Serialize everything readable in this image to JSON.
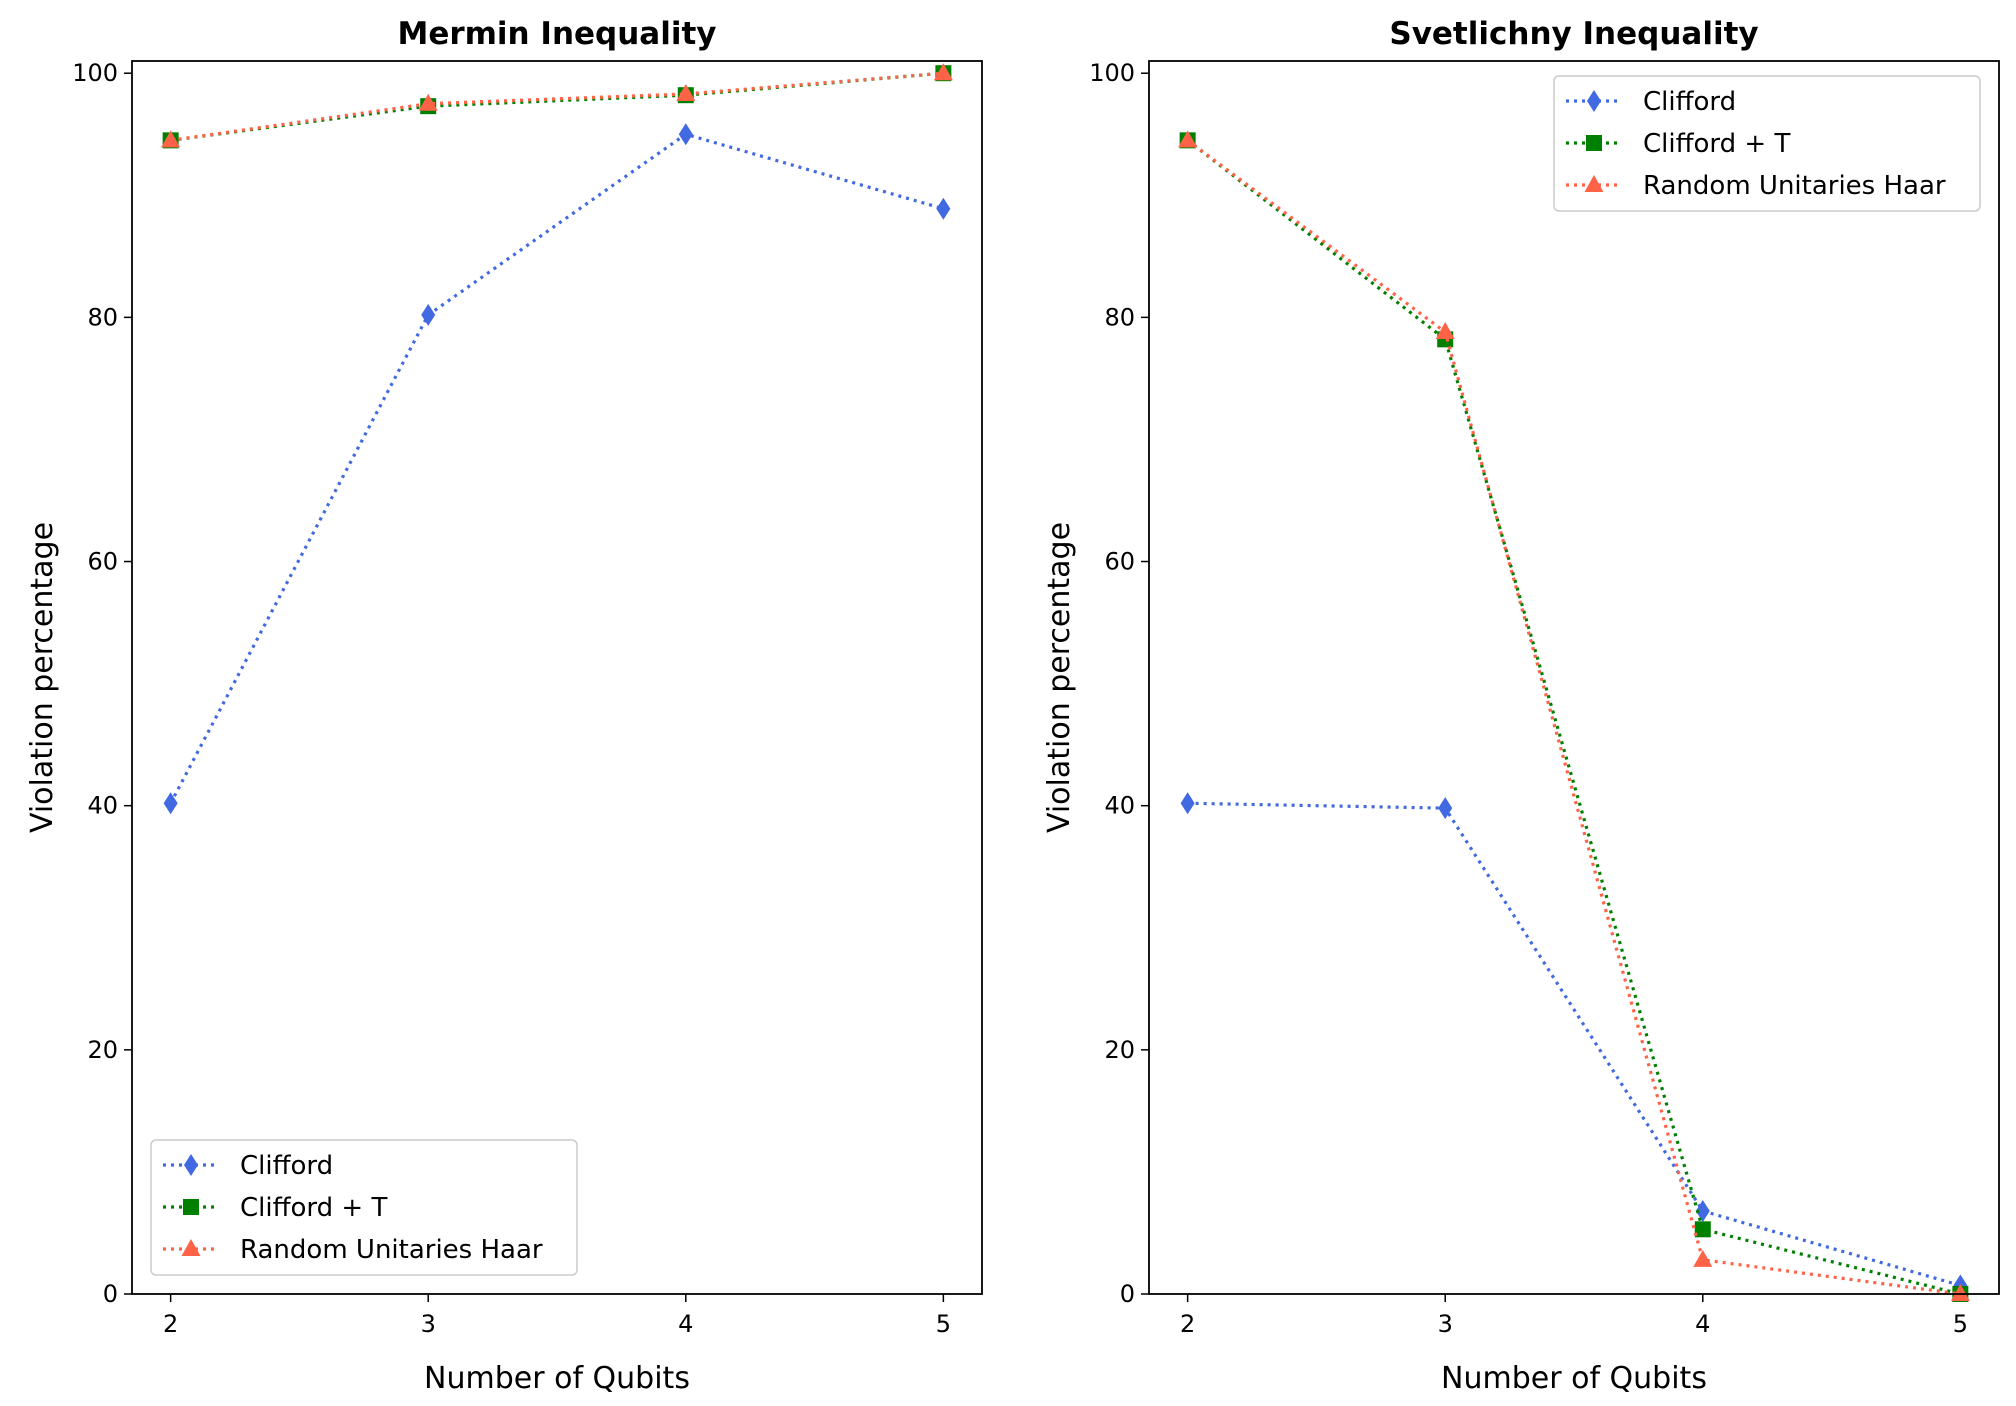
{
  "chart_data": [
    {
      "type": "line",
      "title": "Mermin Inequality",
      "xlabel": "Number of Qubits",
      "ylabel": "Violation percentage",
      "x": [
        2,
        3,
        4,
        5
      ],
      "xlim": [
        1.85,
        5.15
      ],
      "ylim": [
        0,
        101
      ],
      "xticks": [
        "2",
        "3",
        "4",
        "5"
      ],
      "yticks": [
        "0",
        "20",
        "40",
        "60",
        "80",
        "100"
      ],
      "legend_position": "lower-left",
      "series": [
        {
          "name": "Clifford",
          "values": [
            40.2,
            80.2,
            95.0,
            88.9
          ],
          "color": "#4169E1",
          "marker": "diamond"
        },
        {
          "name": "Clifford + T",
          "values": [
            94.5,
            97.3,
            98.2,
            100.0
          ],
          "color": "#008000",
          "marker": "square"
        },
        {
          "name": "Random Unitaries Haar",
          "values": [
            94.5,
            97.5,
            98.3,
            100.0
          ],
          "color": "#FF6347",
          "marker": "triangle"
        }
      ]
    },
    {
      "type": "line",
      "title": "Svetlichny Inequality",
      "xlabel": "Number of Qubits",
      "ylabel": "Violation percentage",
      "x": [
        2,
        3,
        4,
        5
      ],
      "xlim": [
        1.85,
        5.15
      ],
      "ylim": [
        0,
        101
      ],
      "xticks": [
        "2",
        "3",
        "4",
        "5"
      ],
      "yticks": [
        "0",
        "20",
        "40",
        "60",
        "80",
        "100"
      ],
      "legend_position": "upper-right",
      "series": [
        {
          "name": "Clifford",
          "values": [
            40.2,
            39.8,
            6.8,
            0.7
          ],
          "color": "#4169E1",
          "marker": "diamond"
        },
        {
          "name": "Clifford + T",
          "values": [
            94.5,
            78.2,
            5.3,
            0.0
          ],
          "color": "#008000",
          "marker": "square"
        },
        {
          "name": "Random Unitaries Haar",
          "values": [
            94.5,
            78.8,
            2.8,
            0.0
          ],
          "color": "#FF6347",
          "marker": "triangle"
        }
      ]
    }
  ]
}
